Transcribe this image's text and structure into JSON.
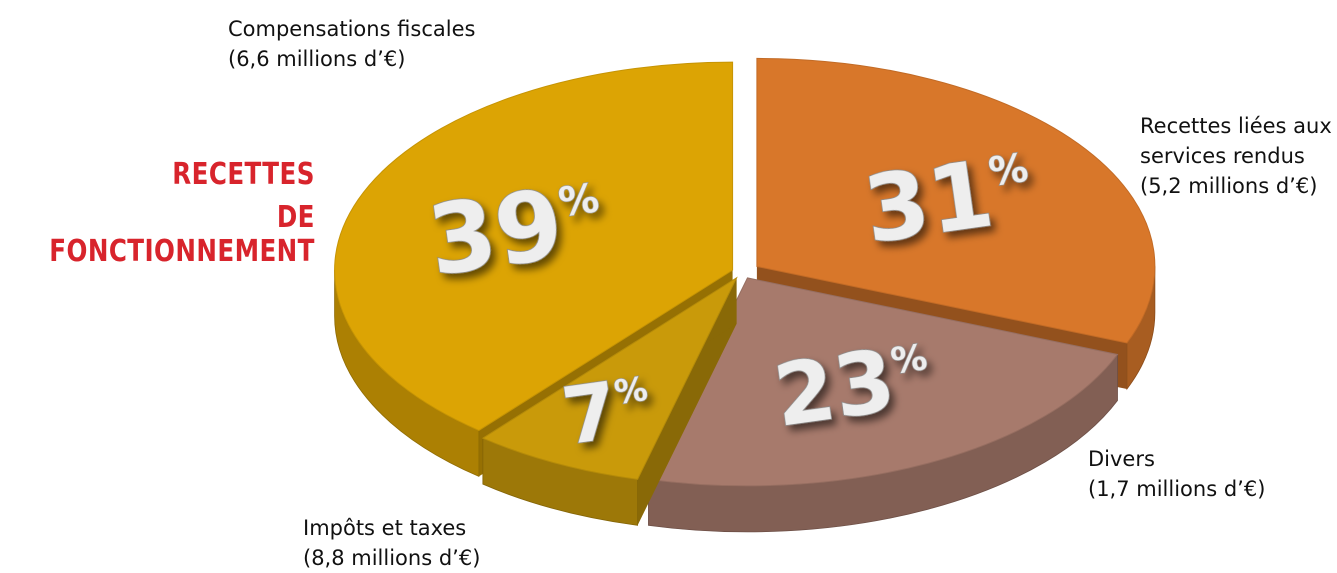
{
  "title": {
    "line1": "RECETTES",
    "line2": "DE FONCTIONNEMENT"
  },
  "colors": {
    "title": "#d8242c"
  },
  "chart_data": {
    "type": "pie",
    "title": "RECETTES DE FONCTIONNEMENT",
    "unit": "millions d'€",
    "slices": [
      {
        "label": "Compensations fiscales",
        "value": 6.6,
        "value_text": "(6,6 millions d’€)",
        "percent": 31,
        "percent_text": "31",
        "color": "#d8772a"
      },
      {
        "label": "Recettes liées aux services rendus",
        "label_line1": "Recettes liées aux",
        "label_line2": "services rendus",
        "value": 5.2,
        "value_text": "(5,2 millions d’€)",
        "percent": 23,
        "percent_text": "23",
        "color": "#a77a6c"
      },
      {
        "label": "Divers",
        "value": 1.7,
        "value_text": "(1,7 millions d’€)",
        "percent": 7,
        "percent_text": "7",
        "color": "#c99a0a"
      },
      {
        "label": "Impôts et taxes",
        "value": 8.8,
        "value_text": "(8,8 millions d’€)",
        "percent": 39,
        "percent_text": "39",
        "color": "#dca404"
      }
    ],
    "percent_sign": "%"
  }
}
